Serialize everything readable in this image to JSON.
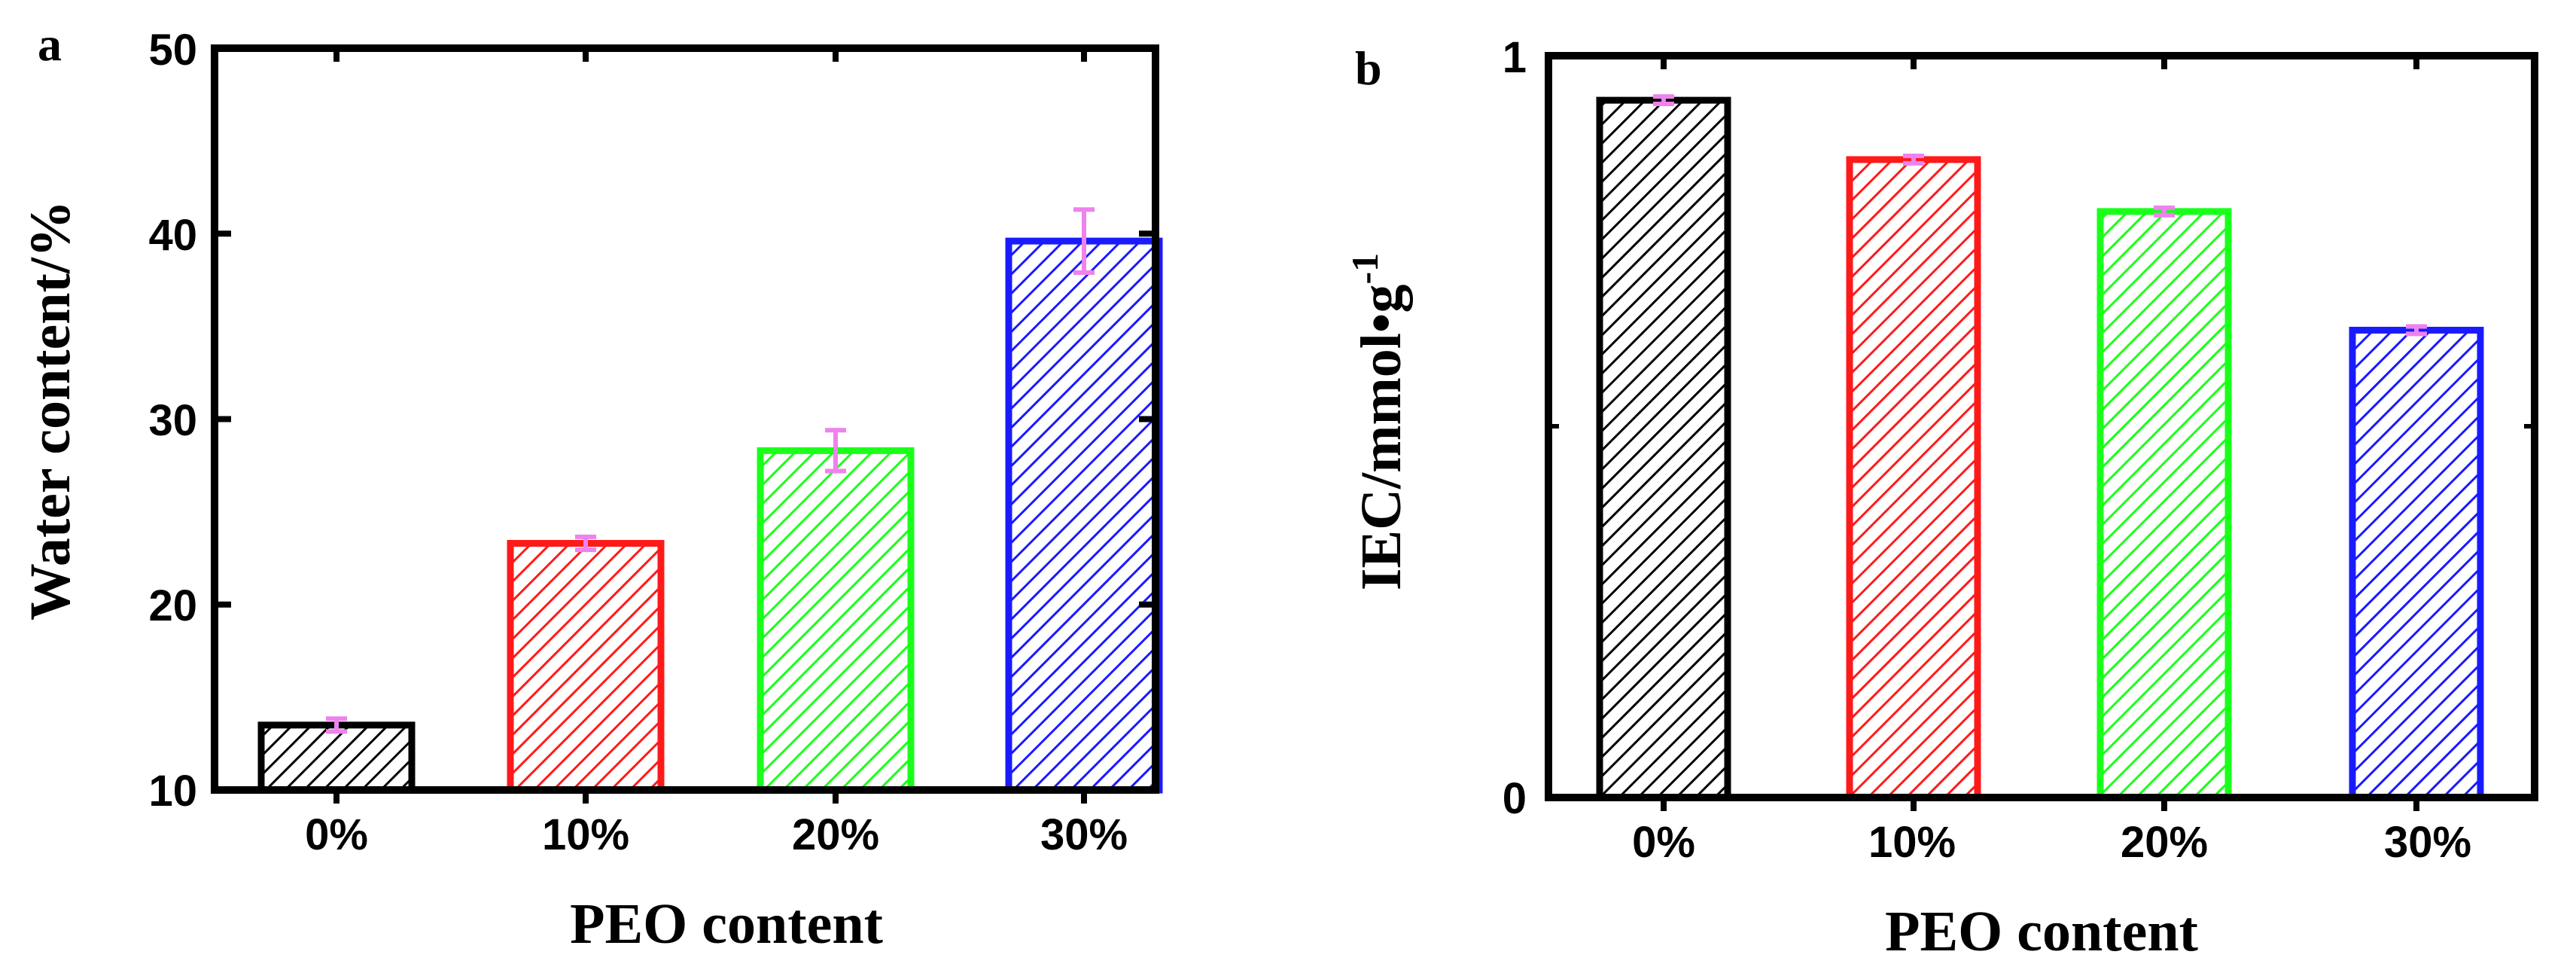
{
  "chart_data": [
    {
      "panel_label": "a",
      "type": "bar",
      "categories": [
        "0%",
        "10%",
        "20%",
        "30%"
      ],
      "values": [
        13.5,
        23.3,
        28.3,
        39.6
      ],
      "errors": [
        0.35,
        0.35,
        1.1,
        1.7
      ],
      "ylim": [
        10,
        50
      ],
      "yticks": [
        "10",
        "20",
        "30",
        "40",
        "50"
      ],
      "xlabel": "PEO content",
      "ylabel": "Water content/%",
      "colors": [
        "#000000",
        "#ff1a1a",
        "#1aff1a",
        "#1a1aff"
      ],
      "error_color": "#ee82ee"
    },
    {
      "panel_label": "b",
      "type": "bar",
      "categories": [
        "0%",
        "10%",
        "20%",
        "30%"
      ],
      "values": [
        0.94,
        0.86,
        0.79,
        0.63
      ],
      "errors": [
        0.005,
        0.005,
        0.005,
        0.005
      ],
      "ylim": [
        0,
        1
      ],
      "yticks": [
        "0",
        "1"
      ],
      "xlabel": "PEO content",
      "ylabel": "IEC/mmol•g",
      "ylabel_superscript": "-1",
      "colors": [
        "#000000",
        "#ff1a1a",
        "#1aff1a",
        "#1a1aff"
      ],
      "error_color": "#ee82ee"
    }
  ]
}
